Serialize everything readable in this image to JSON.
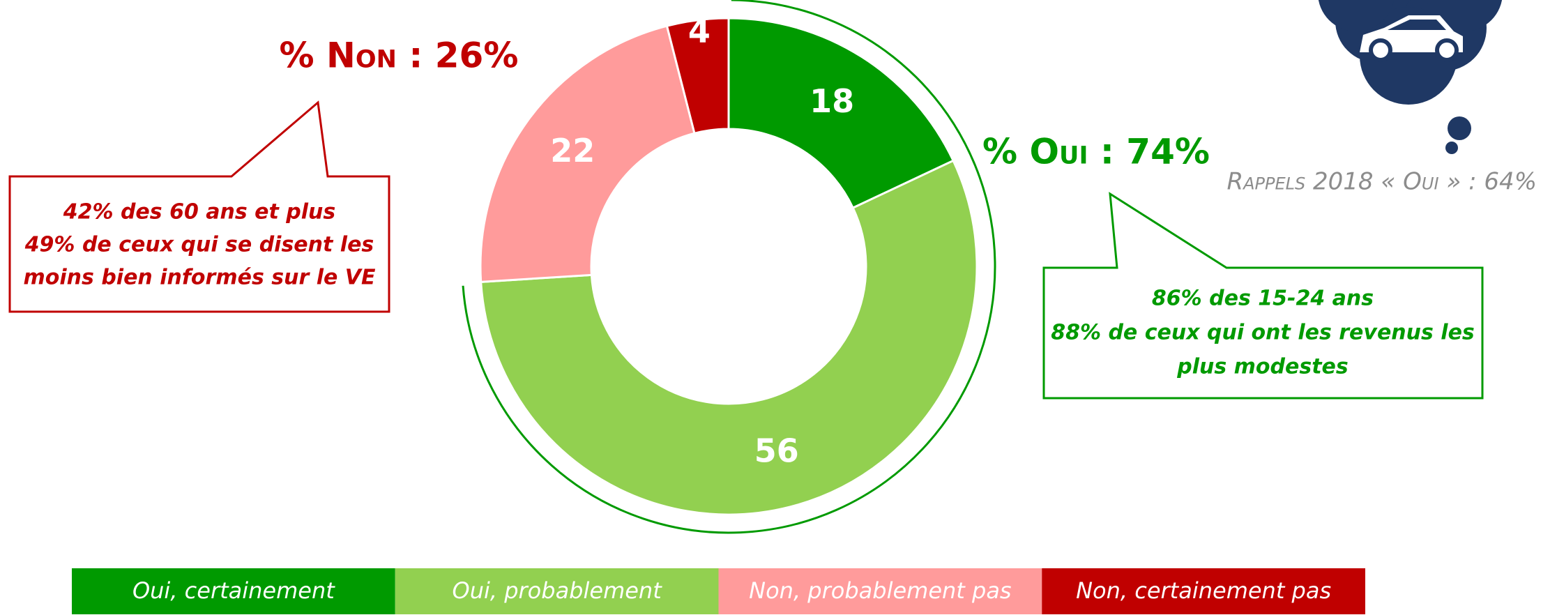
{
  "chart_data": {
    "type": "donut",
    "categories": [
      "Oui, certainement",
      "Oui, probablement",
      "Non, probablement pas",
      "Non, certainement pas"
    ],
    "values": [
      18,
      56,
      22,
      4
    ],
    "colors": [
      "#009a00",
      "#92d050",
      "#ff9b9b",
      "#c00000"
    ],
    "legend": "bottom",
    "annotations": {
      "non_total": "% Non : 26%",
      "oui_total": "% Oui : 74%",
      "recall": "Rappels 2018 « Oui » : 64%",
      "non_callout": [
        "42% des 60 ans et plus",
        "49% de ceux qui se disent les",
        "moins bien informés sur le VE"
      ],
      "oui_callout": [
        "86% des 15-24 ans",
        "88% de ceux qui ont les revenus les",
        "plus modestes"
      ]
    }
  }
}
